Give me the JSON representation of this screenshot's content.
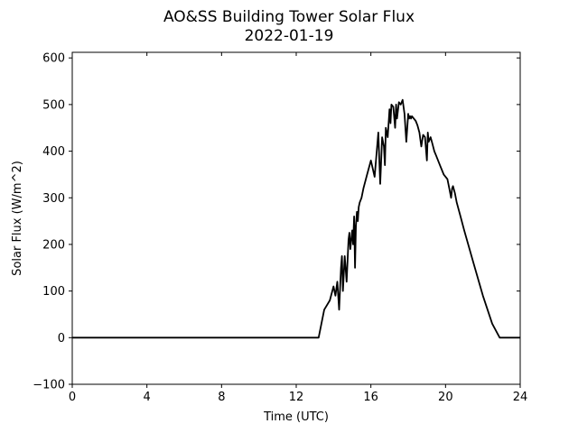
{
  "chart_data": {
    "type": "line",
    "title": "AO&SS Building Tower Solar Flux",
    "subtitle": "2022-01-19",
    "xlabel": "Time (UTC)",
    "ylabel": "Solar Flux (W/m^2)",
    "xlim": [
      0,
      24
    ],
    "ylim": [
      -100,
      612
    ],
    "xticks": [
      0,
      4,
      8,
      12,
      16,
      20,
      24
    ],
    "yticks": [
      -100,
      0,
      100,
      200,
      300,
      400,
      500,
      600
    ],
    "grid": false,
    "series": [
      {
        "color": "#000000",
        "x": [
          0,
          13.2,
          13.5,
          13.8,
          14.0,
          14.1,
          14.2,
          14.3,
          14.4,
          14.45,
          14.5,
          14.6,
          14.7,
          14.8,
          14.85,
          14.9,
          15.0,
          15.05,
          15.1,
          15.15,
          15.2,
          15.25,
          15.3,
          15.35,
          15.4,
          15.5,
          15.6,
          15.8,
          16.0,
          16.2,
          16.4,
          16.5,
          16.6,
          16.7,
          16.75,
          16.8,
          16.9,
          17.0,
          17.05,
          17.1,
          17.2,
          17.3,
          17.35,
          17.4,
          17.5,
          17.6,
          17.7,
          17.8,
          17.9,
          18.0,
          18.05,
          18.1,
          18.15,
          18.2,
          18.3,
          18.4,
          18.5,
          18.6,
          18.7,
          18.8,
          18.9,
          19.0,
          19.05,
          19.1,
          19.2,
          19.3,
          19.4,
          19.5,
          19.7,
          19.9,
          20.1,
          20.2,
          20.3,
          20.35,
          20.4,
          20.5,
          20.6,
          20.8,
          21.0,
          21.5,
          22.0,
          22.5,
          22.9,
          23.2,
          24
        ],
        "y": [
          0,
          0,
          60,
          80,
          110,
          90,
          120,
          60,
          150,
          175,
          100,
          175,
          120,
          210,
          225,
          190,
          230,
          200,
          260,
          150,
          240,
          270,
          250,
          280,
          290,
          300,
          320,
          350,
          380,
          345,
          440,
          330,
          430,
          410,
          370,
          450,
          430,
          490,
          460,
          500,
          495,
          450,
          500,
          470,
          505,
          500,
          510,
          480,
          420,
          480,
          470,
          475,
          470,
          475,
          470,
          465,
          455,
          440,
          410,
          435,
          430,
          380,
          440,
          420,
          430,
          415,
          400,
          390,
          370,
          350,
          340,
          320,
          300,
          320,
          325,
          310,
          290,
          260,
          230,
          160,
          90,
          30,
          0,
          0,
          0
        ]
      }
    ]
  }
}
